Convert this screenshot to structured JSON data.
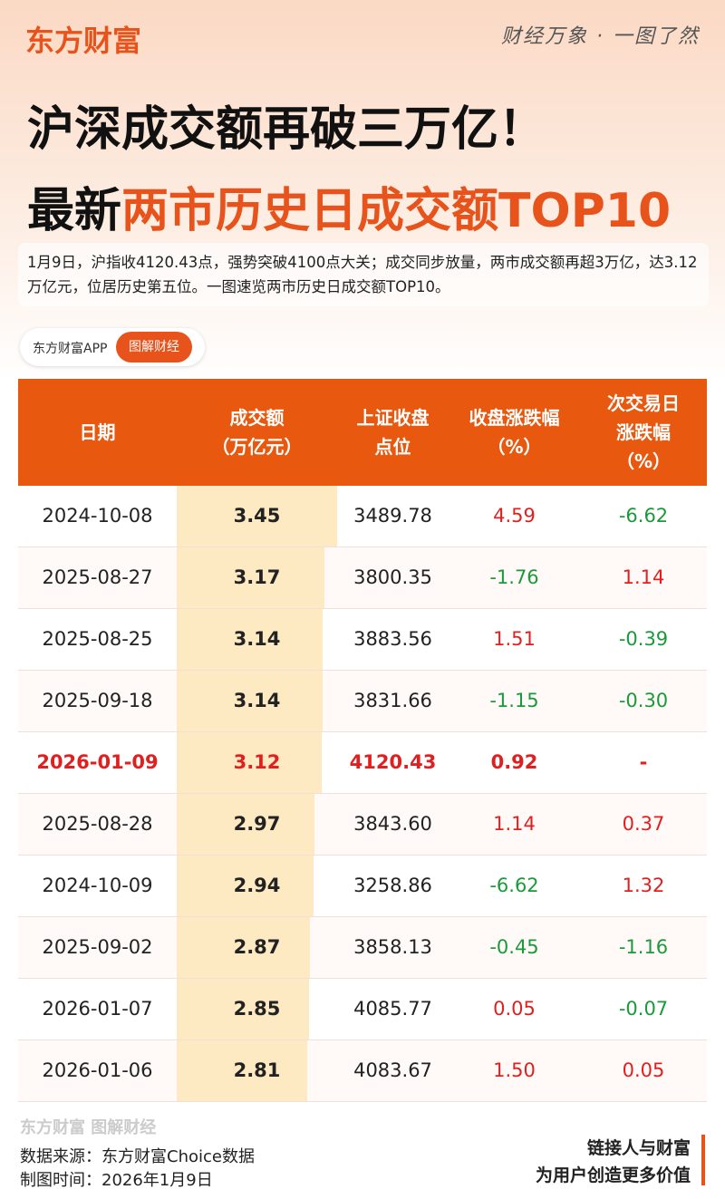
{
  "header": {
    "logo": "东方财富",
    "slogan": "财经万象 · 一图了然"
  },
  "title": {
    "line1": "沪深成交额再破三万亿！",
    "line2_prefix": "最新",
    "line2_highlight": "两市历史日成交额TOP10"
  },
  "intro": "1月9日，沪指收4120.43点，强势突破4100点大关；成交同步放量，两市成交额再超3万亿，达3.12万亿元，位居历史第五位。一图速览两市历史日成交额TOP10。",
  "badge": {
    "app": "东方财富APP",
    "tag": "图解财经"
  },
  "table": {
    "columns": [
      [
        "日期"
      ],
      [
        "成交额",
        "（万亿元）"
      ],
      [
        "上证收盘",
        "点位"
      ],
      [
        "收盘涨跌幅",
        "（%）"
      ],
      [
        "次交易日",
        "涨跌幅",
        "（%）"
      ]
    ],
    "highlight_row": 4,
    "rows": [
      [
        "2024-10-08",
        3.45,
        "3489.78",
        "4.59",
        "-6.62"
      ],
      [
        "2025-08-27",
        3.17,
        "3800.35",
        "-1.76",
        "1.14"
      ],
      [
        "2025-08-25",
        3.14,
        "3883.56",
        "1.51",
        "-0.39"
      ],
      [
        "2025-09-18",
        3.14,
        "3831.66",
        "-1.15",
        "-0.30"
      ],
      [
        "2026-01-09",
        3.12,
        "4120.43",
        "0.92",
        "-"
      ],
      [
        "2025-08-28",
        2.97,
        "3843.60",
        "1.14",
        "0.37"
      ],
      [
        "2024-10-09",
        2.94,
        "3258.86",
        "-6.62",
        "1.32"
      ],
      [
        "2025-09-02",
        2.87,
        "3858.13",
        "-0.45",
        "-1.16"
      ],
      [
        "2026-01-07",
        2.85,
        "4085.77",
        "0.05",
        "-0.07"
      ],
      [
        "2026-01-06",
        2.81,
        "4083.67",
        "1.50",
        "0.05"
      ]
    ]
  },
  "footer": {
    "watermark": "东方财富 图解财经",
    "source": "数据来源：东方财富Choice数据",
    "time": "制图时间：2026年1月9日",
    "motto1": "链接人与财富",
    "motto2": "为用户创造更多价值"
  }
}
